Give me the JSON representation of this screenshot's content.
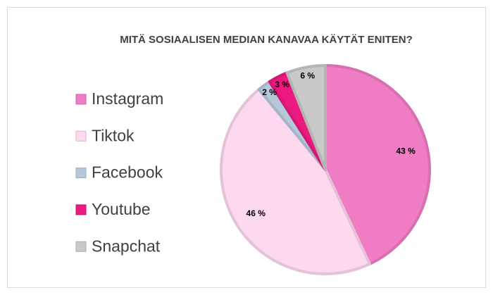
{
  "chart_data": {
    "type": "pie",
    "title": "MITÄ SOSIAALISEN MEDIAN KANAVAA KÄYTÄT ENITEN?",
    "categories": [
      "Instagram",
      "Tiktok",
      "Facebook",
      "Youtube",
      "Snapchat"
    ],
    "values": [
      43,
      46,
      2,
      3,
      6
    ],
    "value_labels": [
      "43 %",
      "46 %",
      "2 %",
      "3 %",
      "6 %"
    ],
    "colors": [
      "#f07cc4",
      "#fdd9f0",
      "#b6c9dc",
      "#ea1a7f",
      "#c9c9c9"
    ],
    "legend": "left"
  }
}
